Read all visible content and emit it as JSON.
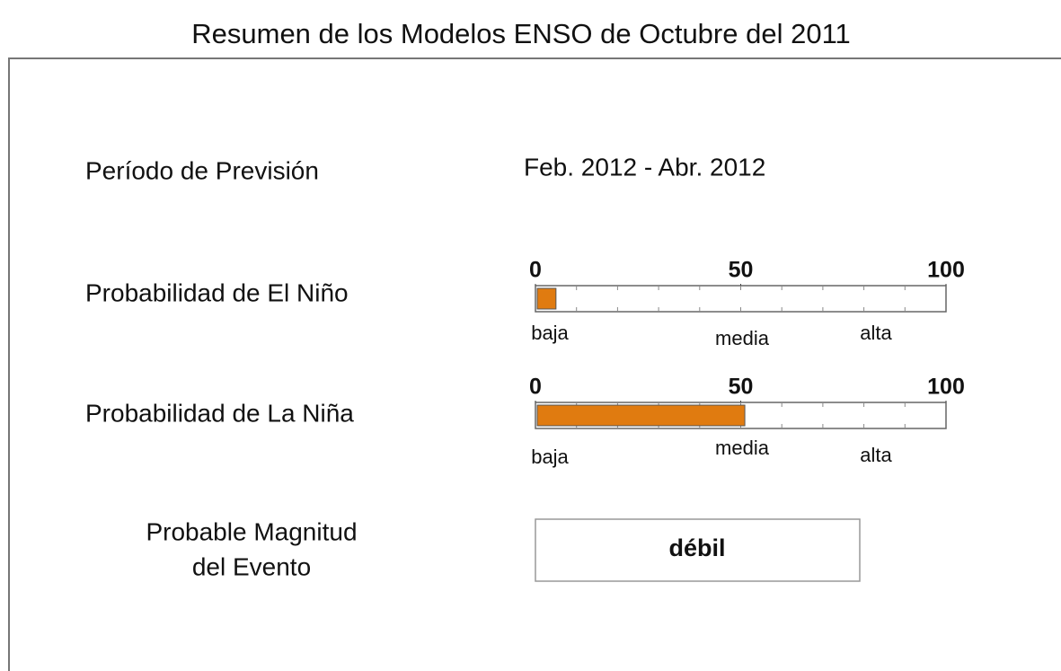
{
  "title": "Resumen de los Modelos ENSO de Octubre del 2011",
  "forecast": {
    "label": "Período de Previsión",
    "value": "Feb. 2012 - Abr. 2012"
  },
  "gauges": [
    {
      "label": "Probabilidad de El Niño",
      "value": 5,
      "color": "#e07b10",
      "lim": [
        0,
        100
      ],
      "ticks": [
        0,
        50,
        100
      ],
      "levels": [
        "baja",
        "media",
        "alta"
      ]
    },
    {
      "label": "Probabilidad de La Niña",
      "value": 51,
      "color": "#e07b10",
      "lim": [
        0,
        100
      ],
      "ticks": [
        0,
        50,
        100
      ],
      "levels": [
        "baja",
        "media",
        "alta"
      ]
    }
  ],
  "magnitude": {
    "label": [
      "Probable Magnitud",
      "del Evento"
    ],
    "value": "débil"
  }
}
